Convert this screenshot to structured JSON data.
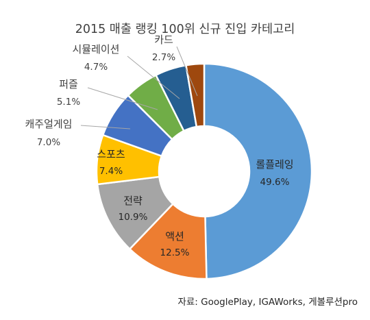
{
  "chart_data": {
    "type": "pie",
    "title": "2015 매출 랭킹 100위 신규 진입 카테고리",
    "categories": [
      "롤플레잉",
      "액션",
      "전략",
      "스포츠",
      "캐주얼게임",
      "퍼즐",
      "시뮬레이션",
      "카드"
    ],
    "values": [
      49.6,
      12.5,
      10.9,
      7.4,
      7.0,
      5.1,
      4.7,
      2.7
    ],
    "value_labels": [
      "49.6%",
      "12.5%",
      "10.9%",
      "7.4%",
      "7.0%",
      "5.1%",
      "4.7%",
      "2.7%"
    ],
    "colors": [
      "#5B9BD5",
      "#ED7D31",
      "#A5A5A5",
      "#FFC000",
      "#4472C4",
      "#70AD47",
      "#255E91",
      "#9E480E"
    ],
    "style": "doughnut",
    "legend": "none",
    "source": "자료: GooglePlay, IGAWorks, 게볼루션pro"
  }
}
